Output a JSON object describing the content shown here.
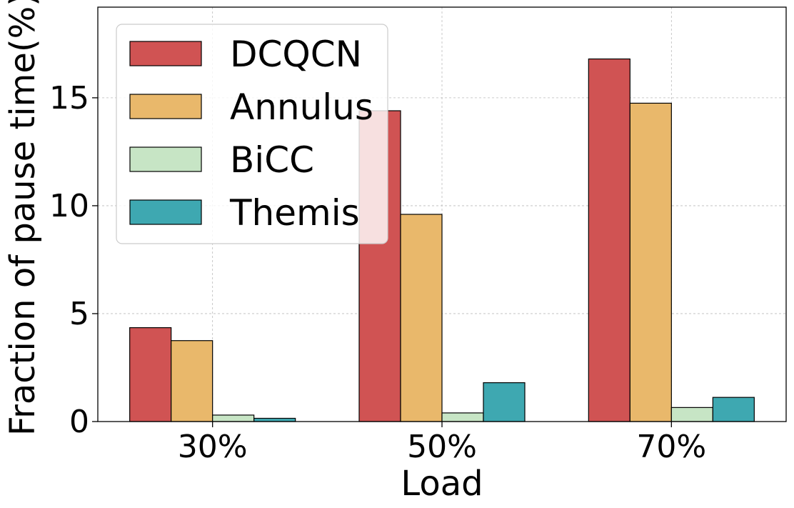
{
  "chart_data": {
    "type": "bar",
    "xlabel": "Load",
    "ylabel": "Fraction of pause time(%)",
    "categories": [
      "30%",
      "50%",
      "70%"
    ],
    "series": [
      {
        "name": "DCQCN",
        "color": "#d05353",
        "values": [
          4.35,
          14.4,
          16.8
        ]
      },
      {
        "name": "Annulus",
        "color": "#e9b86b",
        "values": [
          3.75,
          9.6,
          14.75
        ]
      },
      {
        "name": "BiCC",
        "color": "#c7e5c5",
        "values": [
          0.3,
          0.4,
          0.65
        ]
      },
      {
        "name": "Themis",
        "color": "#3ea8b1",
        "values": [
          0.15,
          1.8,
          1.12
        ]
      }
    ],
    "ylim": [
      0,
      19.2
    ],
    "yticks": [
      0,
      5,
      10,
      15
    ],
    "grid": true,
    "legend_position": "top-left"
  }
}
